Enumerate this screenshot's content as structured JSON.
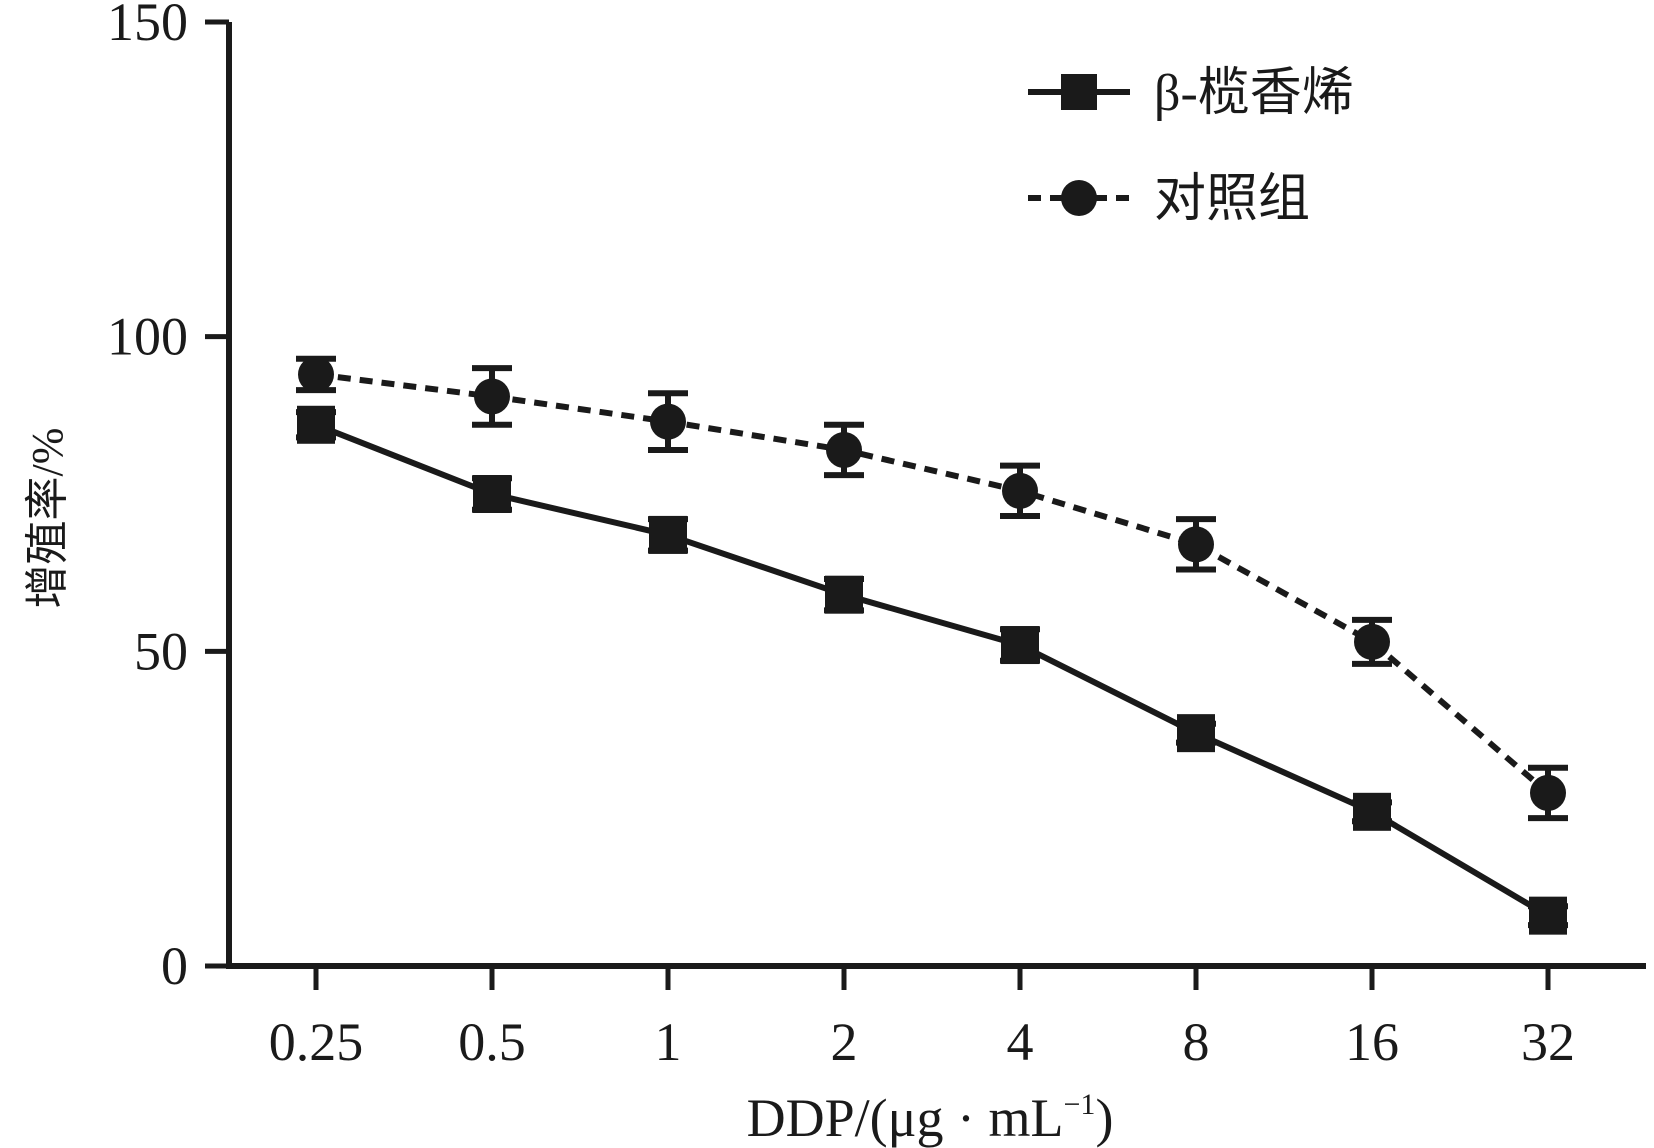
{
  "chart_data": {
    "type": "line",
    "xlabel_main": "DDP/(μg · mL",
    "xlabel_sup": "−1",
    "xlabel_close": ")",
    "ylabel": "增殖率/%",
    "categories": [
      "0.25",
      "0.5",
      "1",
      "2",
      "4",
      "8",
      "16",
      "32"
    ],
    "ylim": [
      0,
      150
    ],
    "yticks": [
      "0",
      "50",
      "100",
      "150"
    ],
    "ytick_values": [
      0,
      50,
      100,
      150
    ],
    "grid": false,
    "legend_position": "top-right",
    "series": [
      {
        "name": "β-榄香烯",
        "marker": "square",
        "line_style": "solid",
        "color": "#1a1a1a",
        "values": [
          86,
          75,
          68.5,
          59,
          51,
          37,
          24.5,
          8
        ],
        "errors": [
          2,
          2.5,
          2.5,
          2.5,
          2.5,
          1.5,
          1.5,
          1.5
        ]
      },
      {
        "name": "对照组",
        "marker": "circle",
        "line_style": "dashed",
        "color": "#1a1a1a",
        "values": [
          94,
          90.5,
          86.5,
          82,
          75.5,
          67,
          51.5,
          27.5
        ],
        "errors": [
          2.5,
          4.5,
          4.5,
          4,
          4,
          4,
          3.5,
          4
        ]
      }
    ]
  }
}
